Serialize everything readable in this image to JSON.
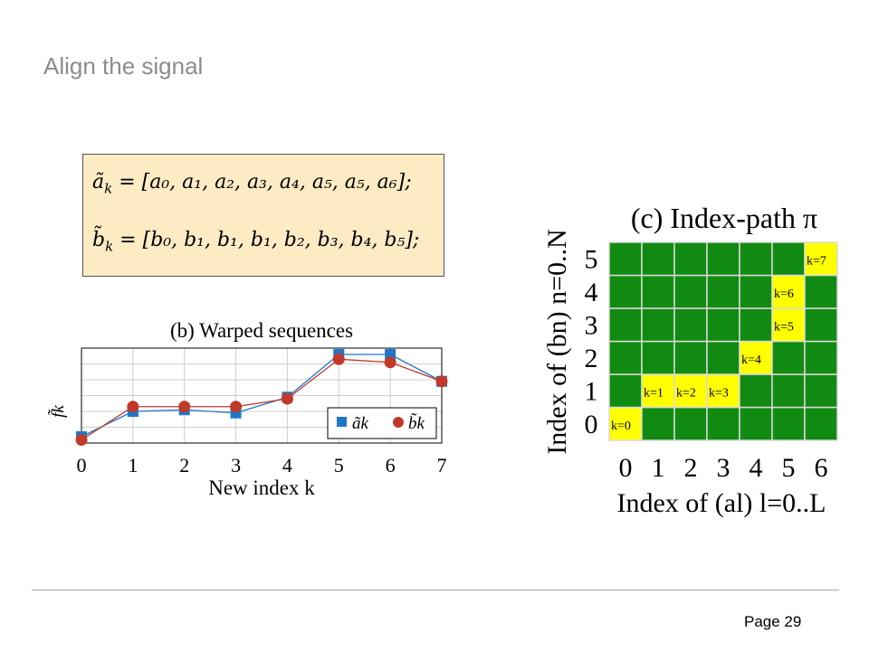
{
  "slide": {
    "title": "Align the signal",
    "page_label": "Page 29"
  },
  "equations": {
    "a_lhs": "ã",
    "a_sub": "k",
    "a_rhs": " = [a₀, a₁, a₂, a₃, a₄, a₅, a₅, a₆];",
    "b_lhs": "b̃",
    "b_sub": "k",
    "b_rhs": " = [b₀, b₁, b₁, b₁, b₂, b₃, b₄, b₅];"
  },
  "colors": {
    "series_a": "#1f77c8",
    "series_b": "#c0392b",
    "grid_green": "#118a11",
    "grid_yellow": "#ffff00",
    "equation_bg": "#fdebc4",
    "title_gray": "#8c8c8c"
  },
  "chart_data": [
    {
      "type": "line",
      "title": "(b) Warped sequences",
      "xlabel": "New index k",
      "ylabel": "f̃k",
      "x": [
        0,
        1,
        2,
        3,
        4,
        5,
        6,
        7
      ],
      "xticks": [
        "0",
        "1",
        "2",
        "3",
        "4",
        "5",
        "6",
        "7"
      ],
      "xlim": [
        0,
        7
      ],
      "ylim": [
        0,
        6
      ],
      "grid": true,
      "legend_position": "bottom-right",
      "series": [
        {
          "name": "ãk",
          "marker": "square",
          "color": "#1f77c8",
          "values": [
            0.4,
            2.0,
            2.1,
            1.9,
            2.9,
            5.6,
            5.6,
            3.9
          ]
        },
        {
          "name": "b̃k",
          "marker": "circle",
          "color": "#c0392b",
          "values": [
            0.2,
            2.3,
            2.3,
            2.3,
            2.8,
            5.3,
            5.1,
            3.9
          ]
        }
      ]
    },
    {
      "type": "heatmap",
      "title": "(c) Index-path π",
      "xlabel": "Index of (al) l=0..L",
      "ylabel": "Index of (bn) n=0..N",
      "x_ticks": [
        "0",
        "1",
        "2",
        "3",
        "4",
        "5",
        "6"
      ],
      "y_ticks": [
        "0",
        "1",
        "2",
        "3",
        "4",
        "5"
      ],
      "path": [
        {
          "l": 0,
          "n": 0,
          "label": "k=0"
        },
        {
          "l": 1,
          "n": 1,
          "label": "k=1"
        },
        {
          "l": 2,
          "n": 1,
          "label": "k=2"
        },
        {
          "l": 3,
          "n": 1,
          "label": "k=3"
        },
        {
          "l": 4,
          "n": 2,
          "label": "k=4"
        },
        {
          "l": 5,
          "n": 3,
          "label": "k=5"
        },
        {
          "l": 5,
          "n": 4,
          "label": "k=6"
        },
        {
          "l": 6,
          "n": 5,
          "label": "k=7"
        }
      ]
    }
  ]
}
